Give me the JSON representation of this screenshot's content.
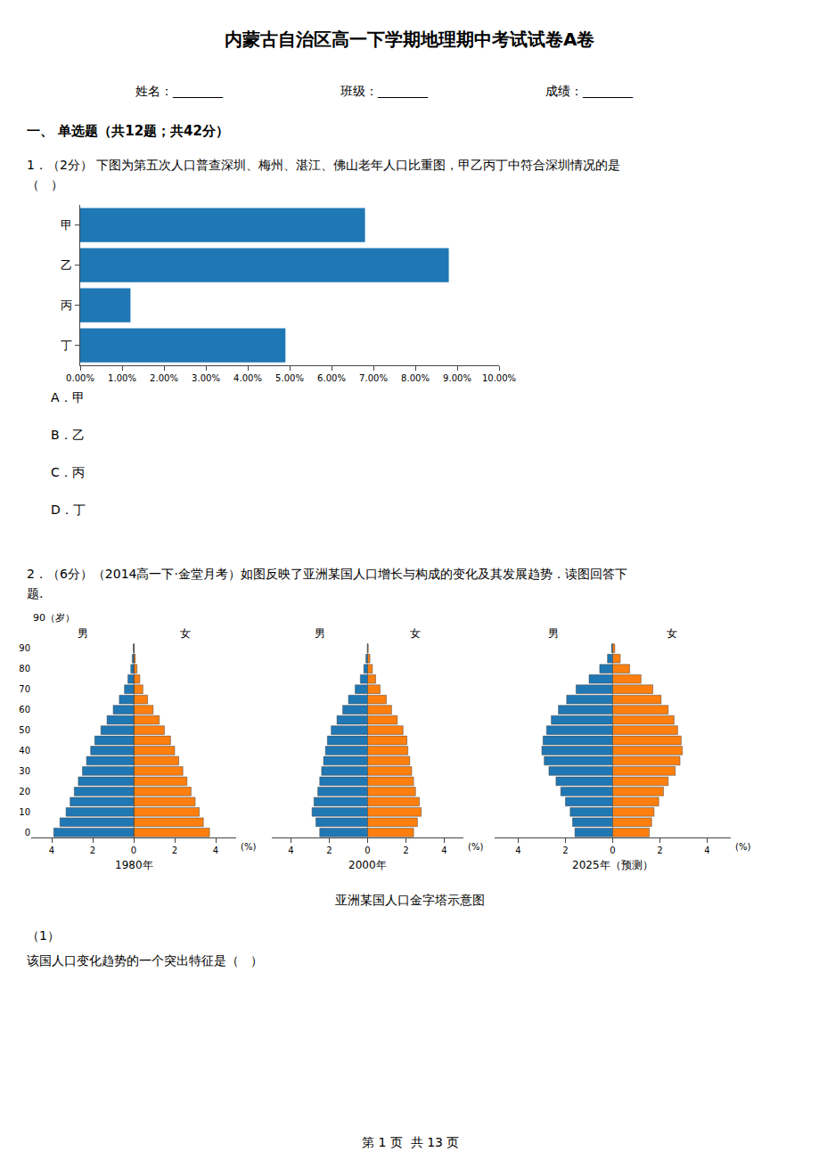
{
  "title": "内蒙古自治区高一下学期地理期中考试试卷A卷",
  "annotations": [
    "姓名：________",
    "班级：________",
    "成绩：________",
    "一、 单选题（共12题；共42分）",
    "1．（2分） 下图为第五次人口普查深圳、梅州、湛江、佛山老年人口比重图，甲乙丙丁中符合深圳情况的是",
    "（   ）",
    "A．甲",
    "B．乙",
    "C．丙",
    "D．丁",
    "2．（6分）（2014高一下·金堂月考）如图反映了亚洲某国人口增长与构成的变化及其发展趋势．读图回答下",
    "题.",
    "亚洲某国人口金字塔示意图",
    "（1）",
    "该国人口变化趋势的一个突出特征是（   ）",
    "第 1 页  共 13 页"
  ],
  "chart_data": [
    {
      "type": "bar",
      "orientation": "horizontal",
      "categories": [
        "丁",
        "丙",
        "乙",
        "甲"
      ],
      "values": [
        4.9,
        1.2,
        8.8,
        6.8
      ],
      "xlim": [
        0,
        10.0
      ],
      "xticks": [
        {
          "value": 0.0,
          "label": "0.00%"
        },
        {
          "value": 1.0,
          "label": "1.00%"
        },
        {
          "value": 2.0,
          "label": "2.00%"
        },
        {
          "value": 3.0,
          "label": "3.00%"
        },
        {
          "value": 4.0,
          "label": "4.00%"
        },
        {
          "value": 5.0,
          "label": "5.00%"
        },
        {
          "value": 6.0,
          "label": "6.00%"
        },
        {
          "value": 7.0,
          "label": "7.00%"
        },
        {
          "value": 8.0,
          "label": "8.00%"
        },
        {
          "value": 9.0,
          "label": "9.00%"
        },
        {
          "value": 10.0,
          "label": "10.00%"
        }
      ],
      "grid": false
    },
    {
      "type": "pyramid",
      "title": "1980年",
      "xlabel": "(%)",
      "categories": [
        "0",
        null,
        "10",
        null,
        "20",
        null,
        "30",
        null,
        "40",
        null,
        "50",
        null,
        "60",
        null,
        "70",
        null,
        "80",
        null,
        "90"
      ],
      "annotations": [
        "90（岁）"
      ],
      "series": [
        {
          "name": "男",
          "color": "#1f77b4",
          "values": [
            3.9,
            3.6,
            3.3,
            3.1,
            2.9,
            2.7,
            2.5,
            2.3,
            2.1,
            1.9,
            1.6,
            1.3,
            1.0,
            0.7,
            0.45,
            0.28,
            0.14,
            0.07,
            0.02
          ]
        },
        {
          "name": "女",
          "color": "#ff7f0e",
          "values": [
            3.7,
            3.4,
            3.2,
            3.0,
            2.8,
            2.6,
            2.4,
            2.2,
            2.0,
            1.8,
            1.5,
            1.25,
            0.95,
            0.68,
            0.45,
            0.3,
            0.16,
            0.08,
            0.025
          ]
        }
      ],
      "xlim": [
        0,
        5.0
      ],
      "xticks": [
        0,
        2,
        4
      ],
      "grid": false
    },
    {
      "type": "pyramid",
      "title": "2000年",
      "xlabel": "(%)",
      "categories": [
        null,
        null,
        null,
        null,
        null,
        null,
        null,
        null,
        null,
        null,
        null,
        null,
        null,
        null,
        null,
        null,
        null,
        null,
        null
      ],
      "tick_labels": "x",
      "series": [
        {
          "name": "男",
          "color": "#1f77b4",
          "values": [
            2.5,
            2.7,
            2.9,
            2.8,
            2.6,
            2.5,
            2.4,
            2.3,
            2.2,
            2.1,
            1.9,
            1.6,
            1.3,
            1.0,
            0.65,
            0.38,
            0.2,
            0.09,
            0.02
          ]
        },
        {
          "name": "女",
          "color": "#ff7f0e",
          "values": [
            2.4,
            2.6,
            2.8,
            2.7,
            2.5,
            2.4,
            2.3,
            2.2,
            2.1,
            2.05,
            1.85,
            1.55,
            1.25,
            0.98,
            0.65,
            0.42,
            0.25,
            0.12,
            0.035
          ]
        }
      ],
      "xlim": [
        0,
        5.0
      ],
      "xticks": [
        0,
        2,
        4
      ],
      "grid": false
    },
    {
      "type": "pyramid",
      "title": "2025年（预测）",
      "xlabel": "(%)",
      "categories": [
        null,
        null,
        null,
        null,
        null,
        null,
        null,
        null,
        null,
        null,
        null,
        null,
        null,
        null,
        null,
        null,
        null,
        null,
        null
      ],
      "tick_labels": "x",
      "series": [
        {
          "name": "男",
          "color": "#1f77b4",
          "values": [
            1.6,
            1.7,
            1.8,
            2.0,
            2.2,
            2.4,
            2.7,
            2.9,
            3.0,
            2.95,
            2.8,
            2.6,
            2.3,
            1.95,
            1.55,
            1.0,
            0.55,
            0.22,
            0.05
          ]
        },
        {
          "name": "女",
          "color": "#ff7f0e",
          "values": [
            1.55,
            1.65,
            1.75,
            1.95,
            2.15,
            2.35,
            2.65,
            2.85,
            2.95,
            2.9,
            2.75,
            2.6,
            2.35,
            2.05,
            1.7,
            1.2,
            0.72,
            0.32,
            0.09
          ]
        }
      ],
      "xlim": [
        0,
        5.0
      ],
      "xticks": [
        0,
        2,
        4
      ],
      "grid": false
    }
  ]
}
